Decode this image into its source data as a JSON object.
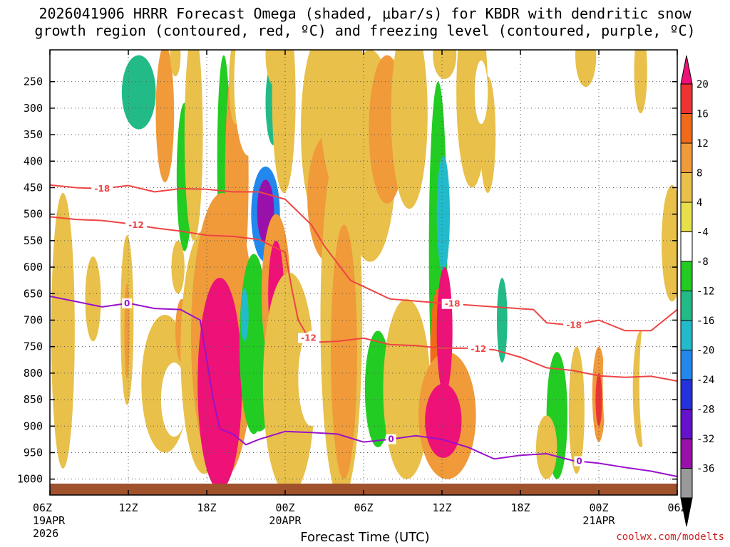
{
  "title_line1": "2026041906 HRRR Forecast Omega (shaded, μbar/s) for KBDR with dendritic snow",
  "title_line2": "growth region (contoured, red, ºC) and freezing level (contoured, purple, ºC)",
  "credit": "coolwx.com/modelts",
  "colors": {
    "terrain": "#a0522d",
    "dgz": "#ee4444",
    "freezing": "#9911cc"
  },
  "chart_data": {
    "type": "heatmap",
    "xlabel": "Forecast Time (UTC)",
    "x_ticks": [
      {
        "hour": 0,
        "label": "06Z",
        "sub1": "19APR",
        "sub2": "2026"
      },
      {
        "hour": 6,
        "label": "12Z",
        "sub1": "",
        "sub2": ""
      },
      {
        "hour": 12,
        "label": "18Z",
        "sub1": "",
        "sub2": ""
      },
      {
        "hour": 18,
        "label": "00Z",
        "sub1": "20APR",
        "sub2": ""
      },
      {
        "hour": 24,
        "label": "06Z",
        "sub1": "",
        "sub2": ""
      },
      {
        "hour": 30,
        "label": "12Z",
        "sub1": "",
        "sub2": ""
      },
      {
        "hour": 36,
        "label": "18Z",
        "sub1": "",
        "sub2": ""
      },
      {
        "hour": 42,
        "label": "00Z",
        "sub1": "21APR",
        "sub2": ""
      },
      {
        "hour": 48,
        "label": "06Z",
        "sub1": "",
        "sub2": ""
      }
    ],
    "xlim_hours": [
      0,
      48
    ],
    "y_ticks": [
      250,
      300,
      350,
      400,
      450,
      500,
      550,
      600,
      650,
      700,
      750,
      800,
      850,
      900,
      950,
      1000
    ],
    "ylim_hpa": [
      190,
      1030
    ],
    "grid": true,
    "colorbar": {
      "labels": [
        20,
        16,
        12,
        8,
        4,
        -4,
        -8,
        -12,
        -16,
        -20,
        -24,
        -28,
        -32,
        -36
      ],
      "colors": [
        "#ee1177",
        "#ee3333",
        "#f06a1a",
        "#f09a3a",
        "#e8c04a",
        "#e8e04a",
        "#ffffff",
        "#22cc22",
        "#22bb88",
        "#22bbcc",
        "#2288ee",
        "#2233dd",
        "#6611cc",
        "#9911aa",
        "#999999",
        "#000000"
      ]
    },
    "omega_cells": [
      {
        "t": 2.5,
        "p": 220,
        "dt": 0.8,
        "dp": 30,
        "v": -6
      },
      {
        "t": 6.8,
        "p": 270,
        "dt": 1.3,
        "dp": 70,
        "v": -14
      },
      {
        "t": 8.8,
        "p": 310,
        "dt": 0.7,
        "dp": 130,
        "v": 10
      },
      {
        "t": 9.6,
        "p": 200,
        "dt": 0.4,
        "dp": 40,
        "v": 6
      },
      {
        "t": 10.3,
        "p": 430,
        "dt": 0.6,
        "dp": 140,
        "v": -10
      },
      {
        "t": 9.8,
        "p": 600,
        "dt": 0.5,
        "dp": 50,
        "v": 6
      },
      {
        "t": 11.0,
        "p": 350,
        "dt": 0.7,
        "dp": 200,
        "v": 6
      },
      {
        "t": 13.3,
        "p": 400,
        "dt": 0.5,
        "dp": 200,
        "v": -12
      },
      {
        "t": 12.5,
        "p": 520,
        "dt": 0.4,
        "dp": 40,
        "v": -8
      },
      {
        "t": 14.3,
        "p": 430,
        "dt": 0.9,
        "dp": 240,
        "v": 10
      },
      {
        "t": 14.2,
        "p": 250,
        "dt": 0.5,
        "dp": 80,
        "v": 6
      },
      {
        "t": 15.2,
        "p": 250,
        "dt": 1.1,
        "dp": 140,
        "v": -8
      },
      {
        "t": 17.1,
        "p": 290,
        "dt": 0.6,
        "dp": 80,
        "v": -14
      },
      {
        "t": 17.3,
        "p": 200,
        "dt": 0.8,
        "dp": 60,
        "v": 6
      },
      {
        "t": 16.5,
        "p": 500,
        "dt": 1.1,
        "dp": 90,
        "v": -24
      },
      {
        "t": 16.5,
        "p": 495,
        "dt": 0.65,
        "dp": 60,
        "v": -36
      },
      {
        "t": 17.9,
        "p": 280,
        "dt": 0.9,
        "dp": 180,
        "v": 6
      },
      {
        "t": 20.8,
        "p": 340,
        "dt": 1.6,
        "dp": 180,
        "v": 6
      },
      {
        "t": 21.3,
        "p": 470,
        "dt": 1.6,
        "dp": 120,
        "v": 10
      },
      {
        "t": 22.5,
        "p": 300,
        "dt": 1.8,
        "dp": 170,
        "v": 6
      },
      {
        "t": 24.5,
        "p": 390,
        "dt": 2.0,
        "dp": 200,
        "v": 6
      },
      {
        "t": 25.8,
        "p": 340,
        "dt": 1.4,
        "dp": 140,
        "v": 10
      },
      {
        "t": 27.5,
        "p": 310,
        "dt": 1.4,
        "dp": 180,
        "v": 6
      },
      {
        "t": 29.7,
        "p": 570,
        "dt": 0.7,
        "dp": 320,
        "v": -10
      },
      {
        "t": 30.1,
        "p": 500,
        "dt": 0.5,
        "dp": 110,
        "v": -20
      },
      {
        "t": 30.2,
        "p": 200,
        "dt": 0.9,
        "dp": 45,
        "v": 6
      },
      {
        "t": 32.3,
        "p": 270,
        "dt": 1.2,
        "dp": 180,
        "v": 6
      },
      {
        "t": 34.6,
        "p": 690,
        "dt": 1.0,
        "dp": 220,
        "v": -8
      },
      {
        "t": 34.6,
        "p": 700,
        "dt": 0.4,
        "dp": 80,
        "v": -16
      },
      {
        "t": 33.5,
        "p": 350,
        "dt": 0.6,
        "dp": 110,
        "v": 6
      },
      {
        "t": 33.0,
        "p": 270,
        "dt": 0.5,
        "dp": 60,
        "v": -6
      },
      {
        "t": 38.5,
        "p": 810,
        "dt": 1.5,
        "dp": 90,
        "v": -8
      },
      {
        "t": 41.0,
        "p": 200,
        "dt": 0.8,
        "dp": 60,
        "v": 6
      },
      {
        "t": 45.2,
        "p": 230,
        "dt": 0.5,
        "dp": 80,
        "v": 6
      },
      {
        "t": 48.5,
        "p": 390,
        "dt": 1.0,
        "dp": 60,
        "v": -8
      },
      {
        "t": 47.6,
        "p": 555,
        "dt": 0.8,
        "dp": 110,
        "v": 6
      },
      {
        "t": 1.0,
        "p": 720,
        "dt": 0.9,
        "dp": 260,
        "v": 6
      },
      {
        "t": 3.3,
        "p": 660,
        "dt": 0.6,
        "dp": 80,
        "v": 6
      },
      {
        "t": 2.3,
        "p": 960,
        "dt": 0.8,
        "dp": 30,
        "v": -8
      },
      {
        "t": 5.9,
        "p": 700,
        "dt": 0.5,
        "dp": 160,
        "v": 6
      },
      {
        "t": 5.9,
        "p": 720,
        "dt": 0.2,
        "dp": 90,
        "v": 10
      },
      {
        "t": 7.0,
        "p": 920,
        "dt": 3.5,
        "dp": 50,
        "v": -8
      },
      {
        "t": 8.8,
        "p": 820,
        "dt": 1.8,
        "dp": 130,
        "v": 6
      },
      {
        "t": 9.5,
        "p": 850,
        "dt": 1.0,
        "dp": 70,
        "v": -8
      },
      {
        "t": 10.1,
        "p": 720,
        "dt": 0.5,
        "dp": 60,
        "v": 10
      },
      {
        "t": 11.2,
        "p": 780,
        "dt": 0.6,
        "dp": 140,
        "v": -14
      },
      {
        "t": 11.8,
        "p": 760,
        "dt": 1.8,
        "dp": 230,
        "v": 6
      },
      {
        "t": 13.2,
        "p": 730,
        "dt": 2.4,
        "dp": 270,
        "v": 10
      },
      {
        "t": 13.0,
        "p": 820,
        "dt": 1.7,
        "dp": 200,
        "v": 20
      },
      {
        "t": 15.6,
        "p": 745,
        "dt": 1.1,
        "dp": 170,
        "v": -10
      },
      {
        "t": 14.9,
        "p": 690,
        "dt": 0.3,
        "dp": 50,
        "v": -20
      },
      {
        "t": 17.3,
        "p": 650,
        "dt": 1.1,
        "dp": 150,
        "v": 10
      },
      {
        "t": 17.3,
        "p": 650,
        "dt": 0.6,
        "dp": 100,
        "v": 20
      },
      {
        "t": 16.0,
        "p": 850,
        "dt": 1.0,
        "dp": 60,
        "v": -12
      },
      {
        "t": 18.3,
        "p": 820,
        "dt": 2.0,
        "dp": 210,
        "v": 6
      },
      {
        "t": 20.0,
        "p": 810,
        "dt": 1.0,
        "dp": 90,
        "v": -8
      },
      {
        "t": 22.3,
        "p": 700,
        "dt": 1.6,
        "dp": 340,
        "v": 6
      },
      {
        "t": 22.5,
        "p": 760,
        "dt": 1.0,
        "dp": 240,
        "v": 10
      },
      {
        "t": 25.1,
        "p": 830,
        "dt": 1.0,
        "dp": 110,
        "v": -10
      },
      {
        "t": 27.3,
        "p": 830,
        "dt": 1.8,
        "dp": 170,
        "v": 6
      },
      {
        "t": 29.7,
        "p": 760,
        "dt": 0.6,
        "dp": 120,
        "v": 12
      },
      {
        "t": 30.4,
        "p": 880,
        "dt": 2.2,
        "dp": 120,
        "v": 10
      },
      {
        "t": 30.2,
        "p": 720,
        "dt": 0.6,
        "dp": 120,
        "v": 20
      },
      {
        "t": 30.1,
        "p": 890,
        "dt": 1.4,
        "dp": 70,
        "v": 20
      },
      {
        "t": 36.2,
        "p": 870,
        "dt": 1.0,
        "dp": 130,
        "v": -8
      },
      {
        "t": 38.8,
        "p": 880,
        "dt": 0.8,
        "dp": 120,
        "v": -10
      },
      {
        "t": 38.0,
        "p": 940,
        "dt": 0.8,
        "dp": 60,
        "v": 6
      },
      {
        "t": 40.3,
        "p": 870,
        "dt": 0.6,
        "dp": 120,
        "v": 6
      },
      {
        "t": 42.0,
        "p": 840,
        "dt": 0.5,
        "dp": 90,
        "v": 10
      },
      {
        "t": 42.0,
        "p": 850,
        "dt": 0.25,
        "dp": 50,
        "v": 16
      },
      {
        "t": 43.0,
        "p": 820,
        "dt": 0.7,
        "dp": 130,
        "v": -8
      },
      {
        "t": 45.2,
        "p": 830,
        "dt": 0.6,
        "dp": 110,
        "v": 6
      },
      {
        "t": 46.3,
        "p": 820,
        "dt": 1.2,
        "dp": 190,
        "v": -8
      }
    ],
    "dgz_lines": [
      {
        "value": -18,
        "label": "-18",
        "labels_at": [
          {
            "t": 4.0
          },
          {
            "t": 30.8
          },
          {
            "t": 40.1
          }
        ],
        "points": [
          [
            0,
            445
          ],
          [
            2,
            450
          ],
          [
            4,
            452
          ],
          [
            6,
            446
          ],
          [
            8,
            458
          ],
          [
            10,
            452
          ],
          [
            12,
            453
          ],
          [
            14,
            458
          ],
          [
            16,
            458
          ],
          [
            18,
            472
          ],
          [
            20,
            520
          ],
          [
            21,
            560
          ],
          [
            23,
            625
          ],
          [
            26,
            660
          ],
          [
            30,
            668
          ],
          [
            34,
            675
          ],
          [
            37,
            680
          ],
          [
            38,
            705
          ],
          [
            40,
            710
          ],
          [
            42,
            700
          ],
          [
            44,
            720
          ],
          [
            46,
            720
          ],
          [
            48,
            680
          ]
        ]
      },
      {
        "value": -12,
        "label": "-12",
        "labels_at": [
          {
            "t": 6.6
          },
          {
            "t": 19.8
          },
          {
            "t": 32.8
          }
        ],
        "points": [
          [
            0,
            505
          ],
          [
            2,
            510
          ],
          [
            4,
            512
          ],
          [
            6,
            518
          ],
          [
            8,
            526
          ],
          [
            10,
            532
          ],
          [
            12,
            540
          ],
          [
            14,
            542
          ],
          [
            16,
            548
          ],
          [
            18,
            572
          ],
          [
            18.5,
            640
          ],
          [
            19,
            700
          ],
          [
            20,
            742
          ],
          [
            22,
            740
          ],
          [
            24,
            734
          ],
          [
            26,
            746
          ],
          [
            28,
            748
          ],
          [
            30,
            753
          ],
          [
            32,
            753
          ],
          [
            34,
            756
          ],
          [
            36,
            770
          ],
          [
            38,
            790
          ],
          [
            40,
            795
          ],
          [
            42,
            805
          ],
          [
            44,
            808
          ],
          [
            46,
            806
          ],
          [
            48,
            815
          ]
        ]
      }
    ],
    "freezing_line": {
      "value": 0,
      "label": "0",
      "labels_at": [
        {
          "t": 5.9
        },
        {
          "t": 26.1
        },
        {
          "t": 40.5
        }
      ],
      "points": [
        [
          0,
          655
        ],
        [
          2,
          665
        ],
        [
          4,
          675
        ],
        [
          6,
          668
        ],
        [
          8,
          678
        ],
        [
          10,
          680
        ],
        [
          11.5,
          700
        ],
        [
          12.5,
          850
        ],
        [
          13,
          905
        ],
        [
          14,
          915
        ],
        [
          15,
          935
        ],
        [
          16,
          925
        ],
        [
          18,
          910
        ],
        [
          20,
          912
        ],
        [
          22,
          915
        ],
        [
          24,
          930
        ],
        [
          26,
          925
        ],
        [
          28,
          918
        ],
        [
          30,
          925
        ],
        [
          32,
          940
        ],
        [
          34,
          962
        ],
        [
          36,
          955
        ],
        [
          38,
          952
        ],
        [
          40,
          965
        ],
        [
          42,
          970
        ],
        [
          44,
          978
        ],
        [
          46,
          985
        ],
        [
          48,
          995
        ]
      ]
    }
  }
}
